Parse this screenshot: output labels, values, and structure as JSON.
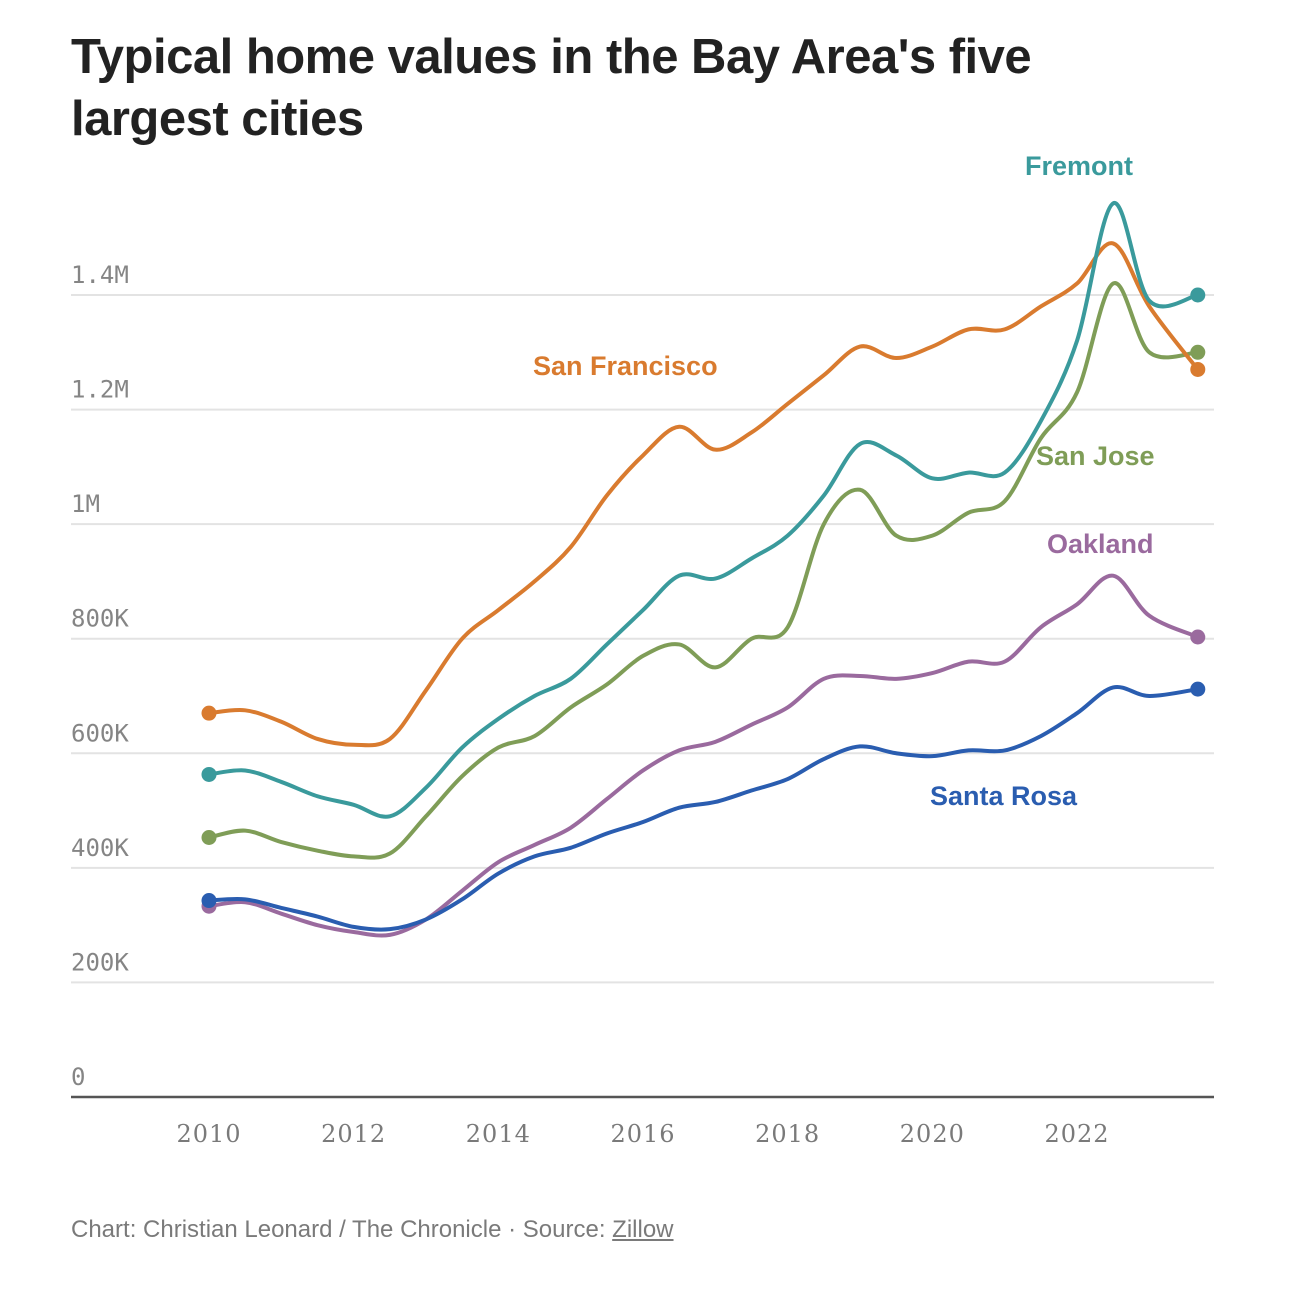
{
  "title": "Typical home values in the Bay Area's five largest cities",
  "footer": {
    "credit": "Chart: Christian Leonard / The Chronicle",
    "separator": " · ",
    "source_label": "Source: ",
    "source_link": "Zillow"
  },
  "chart_data": {
    "type": "line",
    "title": "Typical home values in the Bay Area's five largest cities",
    "xlabel": "",
    "ylabel": "",
    "xlim": [
      2008.5,
      2024.0
    ],
    "ylim": [
      0,
      1600000
    ],
    "grid": true,
    "legend": "direct-labels",
    "x_ticks": [
      2010,
      2012,
      2014,
      2016,
      2018,
      2020,
      2022
    ],
    "x_tick_labels": [
      "2010",
      "2012",
      "2014",
      "2016",
      "2018",
      "2020",
      "2022"
    ],
    "y_ticks": [
      0,
      200000,
      400000,
      600000,
      800000,
      1000000,
      1200000,
      1400000
    ],
    "y_tick_labels": [
      "0",
      "200K",
      "400K",
      "600K",
      "800K",
      "1M",
      "1.2M",
      "1.4M"
    ],
    "x": [
      2010.0,
      2010.5,
      2011.0,
      2011.5,
      2012.0,
      2012.5,
      2013.0,
      2013.5,
      2014.0,
      2014.5,
      2015.0,
      2015.5,
      2016.0,
      2016.5,
      2017.0,
      2017.5,
      2018.0,
      2018.5,
      2019.0,
      2019.5,
      2020.0,
      2020.5,
      2021.0,
      2021.5,
      2022.0,
      2022.5,
      2023.0,
      2023.67
    ],
    "series": [
      {
        "name": "San Francisco",
        "color": "#d97b2f",
        "values": [
          670000,
          675000,
          655000,
          625000,
          615000,
          625000,
          710000,
          800000,
          850000,
          900000,
          960000,
          1050000,
          1120000,
          1170000,
          1130000,
          1160000,
          1210000,
          1260000,
          1310000,
          1290000,
          1310000,
          1340000,
          1340000,
          1380000,
          1420000,
          1490000,
          1380000,
          1270000
        ]
      },
      {
        "name": "Fremont",
        "color": "#3a9a9c",
        "values": [
          563000,
          570000,
          550000,
          525000,
          510000,
          490000,
          540000,
          610000,
          660000,
          700000,
          730000,
          790000,
          850000,
          910000,
          905000,
          940000,
          980000,
          1050000,
          1140000,
          1120000,
          1080000,
          1090000,
          1090000,
          1180000,
          1320000,
          1560000,
          1390000,
          1400000
        ]
      },
      {
        "name": "San Jose",
        "color": "#7f9d57",
        "values": [
          453000,
          465000,
          445000,
          430000,
          420000,
          425000,
          490000,
          560000,
          610000,
          630000,
          680000,
          720000,
          770000,
          790000,
          750000,
          800000,
          820000,
          1000000,
          1060000,
          980000,
          980000,
          1020000,
          1040000,
          1150000,
          1230000,
          1420000,
          1300000,
          1300000
        ]
      },
      {
        "name": "Oakland",
        "color": "#9a6a9e",
        "values": [
          333000,
          340000,
          320000,
          300000,
          288000,
          283000,
          310000,
          360000,
          410000,
          440000,
          470000,
          520000,
          570000,
          605000,
          620000,
          650000,
          680000,
          730000,
          735000,
          730000,
          740000,
          760000,
          760000,
          820000,
          860000,
          910000,
          840000,
          803000
        ]
      },
      {
        "name": "Santa Rosa",
        "color": "#2a5db0",
        "values": [
          343000,
          345000,
          330000,
          315000,
          297000,
          293000,
          310000,
          345000,
          390000,
          420000,
          435000,
          460000,
          480000,
          505000,
          515000,
          535000,
          555000,
          590000,
          612000,
          600000,
          595000,
          605000,
          605000,
          630000,
          670000,
          715000,
          700000,
          712000
        ]
      }
    ]
  }
}
